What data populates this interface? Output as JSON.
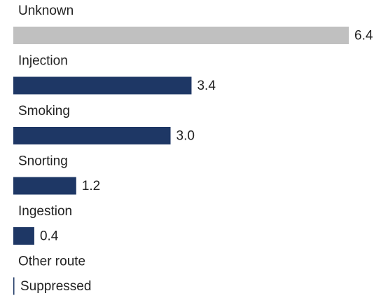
{
  "chart_data": {
    "type": "hbar",
    "categories": [
      "Unknown",
      "Injection",
      "Smoking",
      "Snorting",
      "Ingestion",
      "Other route"
    ],
    "values": [
      6.4,
      3.4,
      3.0,
      1.2,
      0.4,
      null
    ],
    "value_labels": [
      "6.4",
      "3.4",
      "3.0",
      "1.2",
      "0.4",
      "Suppressed"
    ],
    "colors": [
      "#c0c0c0",
      "#1e3765",
      "#1e3765",
      "#1e3765",
      "#1e3765",
      "#1e3765"
    ]
  }
}
